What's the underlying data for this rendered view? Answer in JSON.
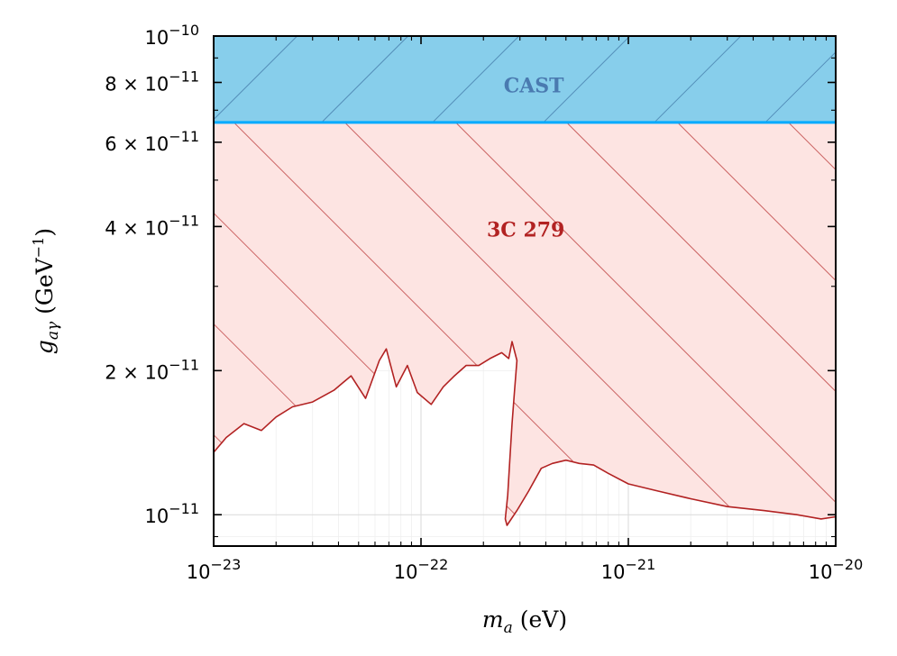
{
  "chart_data": {
    "type": "area",
    "xscale": "log",
    "yscale": "log",
    "xlim": [
      1e-23,
      1e-20
    ],
    "ylim": [
      8.6e-12,
      1e-10
    ],
    "xlabel": {
      "main": "m",
      "sub": "a",
      "rest": " (eV)"
    },
    "ylabel": {
      "main": "g",
      "sub": "aγ",
      "rest": " (GeV",
      "exp": "−1",
      "close": ")"
    },
    "xticks": [
      {
        "value": 1e-23,
        "base": "10",
        "exp": "−23"
      },
      {
        "value": 1e-22,
        "base": "10",
        "exp": "−22"
      },
      {
        "value": 1e-21,
        "base": "10",
        "exp": "−21"
      },
      {
        "value": 1e-20,
        "base": "10",
        "exp": "−20"
      }
    ],
    "yticks": [
      {
        "value": 1e-11,
        "prefix": "",
        "base": "10",
        "exp": "−11"
      },
      {
        "value": 2e-11,
        "prefix": "2 × ",
        "base": "10",
        "exp": "−11"
      },
      {
        "value": 4e-11,
        "prefix": "4 × ",
        "base": "10",
        "exp": "−11"
      },
      {
        "value": 6e-11,
        "prefix": "6 × ",
        "base": "10",
        "exp": "−11"
      },
      {
        "value": 8e-11,
        "prefix": "8 × ",
        "base": "10",
        "exp": "−11"
      },
      {
        "value": 1e-10,
        "prefix": "",
        "base": "10",
        "exp": "−10"
      }
    ],
    "grid": true,
    "series": [
      {
        "name": "CAST",
        "kind": "horizontal_band",
        "ymin": 6.6e-11,
        "ymax": 1e-10,
        "fill": "#87ceeb",
        "edge": "#00aaff",
        "hatch": "#3a6fa0",
        "label_at": [
          3.5e-22,
          7.9e-11
        ],
        "label_color": "#4a7ab0"
      },
      {
        "name": "3C 279",
        "kind": "exclusion_region",
        "fill": "#fde4e2",
        "edge": "#b22222",
        "label_at": [
          3.2e-22,
          3.95e-11
        ],
        "label_color": "#b22222",
        "boundary": [
          [
            1e-23,
            1.35e-11
          ],
          [
            1.15e-23,
            1.45e-11
          ],
          [
            1.4e-23,
            1.55e-11
          ],
          [
            1.7e-23,
            1.5e-11
          ],
          [
            2e-23,
            1.6e-11
          ],
          [
            2.4e-23,
            1.68e-11
          ],
          [
            3e-23,
            1.72e-11
          ],
          [
            3.8e-23,
            1.82e-11
          ],
          [
            4.6e-23,
            1.95e-11
          ],
          [
            5.4e-23,
            1.75e-11
          ],
          [
            6.3e-23,
            2.1e-11
          ],
          [
            6.8e-23,
            2.22e-11
          ],
          [
            7.6e-23,
            1.85e-11
          ],
          [
            8.6e-23,
            2.05e-11
          ],
          [
            9.6e-23,
            1.8e-11
          ],
          [
            1.12e-22,
            1.7e-11
          ],
          [
            1.28e-22,
            1.85e-11
          ],
          [
            1.45e-22,
            1.95e-11
          ],
          [
            1.65e-22,
            2.05e-11
          ],
          [
            1.9e-22,
            2.05e-11
          ],
          [
            2.15e-22,
            2.12e-11
          ],
          [
            2.45e-22,
            2.18e-11
          ],
          [
            2.65e-22,
            2.12e-11
          ],
          [
            2.75e-22,
            2.3e-11
          ],
          [
            2.9e-22,
            2.1e-11
          ],
          [
            2.82e-22,
            1.8e-11
          ],
          [
            2.75e-22,
            1.55e-11
          ],
          [
            2.68e-22,
            1.3e-11
          ],
          [
            2.62e-22,
            1.1e-11
          ],
          [
            2.55e-22,
            9.8e-12
          ],
          [
            2.6e-22,
            9.5e-12
          ],
          [
            2.9e-22,
            1.02e-11
          ],
          [
            3.3e-22,
            1.12e-11
          ],
          [
            3.8e-22,
            1.25e-11
          ],
          [
            4.3e-22,
            1.28e-11
          ],
          [
            5e-22,
            1.3e-11
          ],
          [
            5.8e-22,
            1.28e-11
          ],
          [
            6.8e-22,
            1.27e-11
          ],
          [
            8e-22,
            1.22e-11
          ],
          [
            1e-21,
            1.16e-11
          ],
          [
            1.4e-21,
            1.12e-11
          ],
          [
            2e-21,
            1.08e-11
          ],
          [
            3e-21,
            1.04e-11
          ],
          [
            4.5e-21,
            1.02e-11
          ],
          [
            6.5e-21,
            1e-11
          ],
          [
            8.5e-21,
            9.8e-12
          ],
          [
            1e-20,
            9.9e-12
          ]
        ]
      }
    ]
  }
}
